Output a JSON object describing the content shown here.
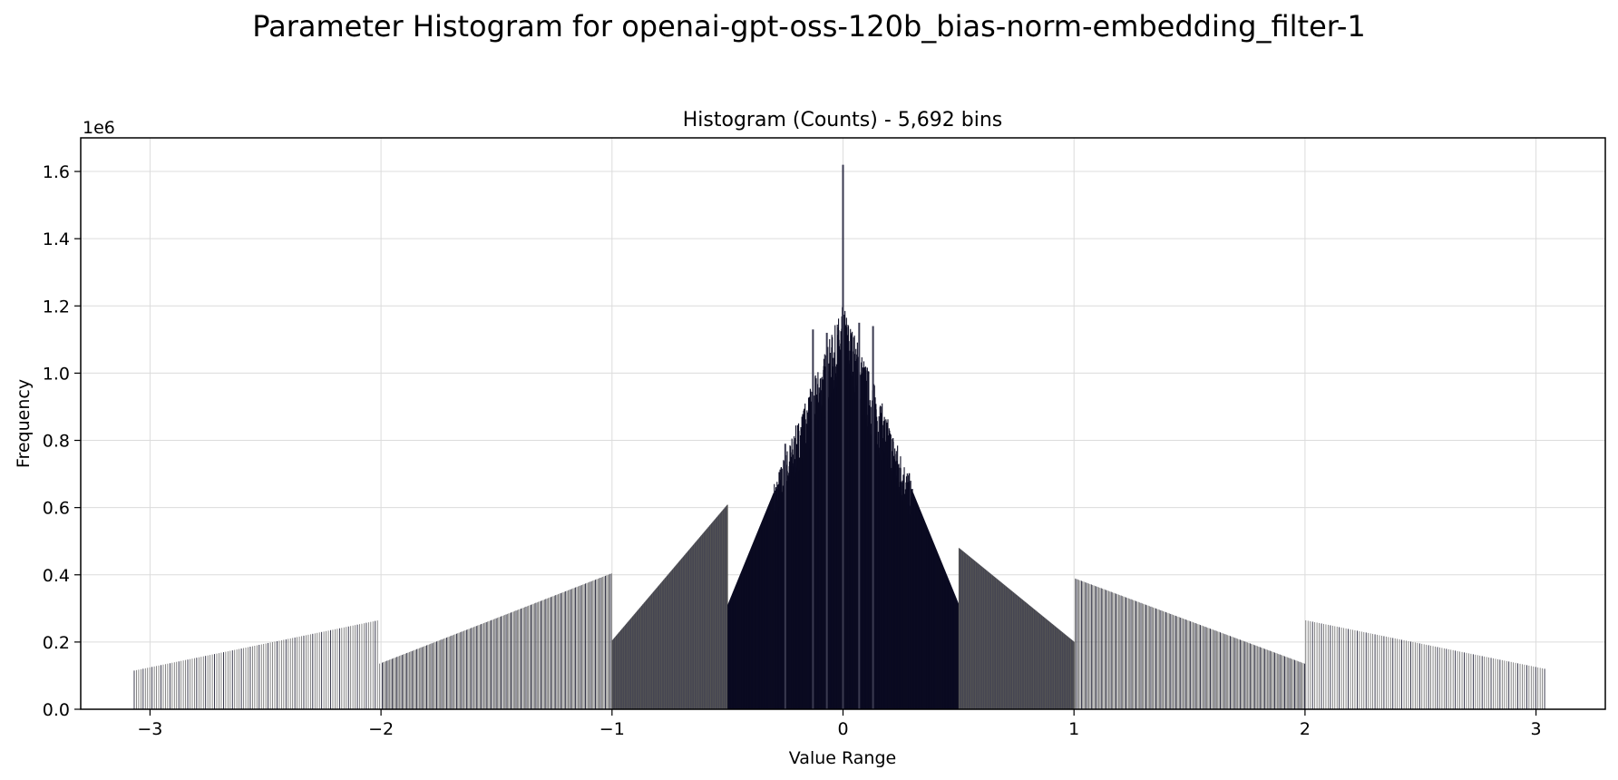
{
  "figure": {
    "suptitle": "Parameter Histogram for openai-gpt-oss-120b_bias-norm-embedding_filter-1"
  },
  "chart_data": {
    "type": "bar",
    "title": "Histogram (Counts) - 5,692 bins",
    "xlabel": "Value Range",
    "ylabel": "Frequency",
    "y_offset_text": "1e6",
    "xlim": [
      -3.3,
      3.3
    ],
    "ylim": [
      0,
      1.7
    ],
    "y_scale_factor": 1000000,
    "x_ticks": [
      -3,
      -2,
      -1,
      0,
      1,
      2,
      3
    ],
    "x_tick_labels": [
      "−3",
      "−2",
      "−1",
      "0",
      "1",
      "2",
      "3"
    ],
    "y_ticks": [
      0.0,
      0.2,
      0.4,
      0.6,
      0.8,
      1.0,
      1.2,
      1.4,
      1.6
    ],
    "y_tick_labels": [
      "0.0",
      "0.2",
      "0.4",
      "0.6",
      "0.8",
      "1.0",
      "1.2",
      "1.4",
      "1.6"
    ],
    "grid": true,
    "bin_count": 5692,
    "envelope_units": "1e6 counts",
    "envelope": [
      {
        "x0": -3.07,
        "x1": -2.01,
        "y0": 0.115,
        "y1": 0.265
      },
      {
        "x0": -2.01,
        "x1": -1.0,
        "y0": 0.135,
        "y1": 0.405
      },
      {
        "x0": -1.0,
        "x1": -0.5,
        "y0": 0.205,
        "y1": 0.61
      },
      {
        "x0": -0.5,
        "x1": 0.0,
        "y0": 0.31,
        "y1": 1.15
      },
      {
        "x0": 0.0,
        "x1": 0.5,
        "y0": 1.15,
        "y1": 0.31
      },
      {
        "x0": 0.5,
        "x1": 1.0,
        "y0": 0.48,
        "y1": 0.2
      },
      {
        "x0": 1.0,
        "x1": 2.0,
        "y0": 0.39,
        "y1": 0.135
      },
      {
        "x0": 2.0,
        "x1": 3.04,
        "y0": 0.265,
        "y1": 0.12
      }
    ],
    "peaks": [
      {
        "x": 0.0,
        "y": 1.62
      },
      {
        "x": 0.0,
        "y": 1.32
      },
      {
        "x": -0.25,
        "y": 0.79
      },
      {
        "x": 0.13,
        "y": 1.14
      },
      {
        "x": -0.13,
        "y": 1.13
      },
      {
        "x": 0.07,
        "y": 1.15
      },
      {
        "x": -0.07,
        "y": 1.12
      }
    ],
    "colors": {
      "bar_dark": "#0b0b22",
      "bar_mid": "#3a3a50",
      "bar_light": "#555555",
      "grid": "#dcdcdc"
    }
  }
}
